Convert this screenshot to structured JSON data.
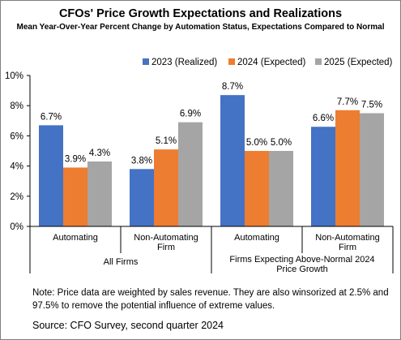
{
  "title": "CFOs' Price Growth Expectations and Realizations",
  "subtitle": "Mean Year-Over-Year Percent Change by Automation Status, Expectations Compared to Normal",
  "note": "Note: Price data are weighted by sales revenue. They are also winsorized at 2.5% and 97.5% to remove the potential influence of extreme values.",
  "source": "Source: CFO Survey, second quarter 2024",
  "chart_data": {
    "type": "bar",
    "title": "CFOs' Price Growth Expectations and Realizations",
    "subtitle": "Mean Year-Over-Year Percent Change by Automation Status, Expectations Compared to Normal",
    "categories": [
      "Automating",
      "Non-Automating Firm",
      "Automating",
      "Non-Automating Firm"
    ],
    "groups": [
      {
        "label": "All Firms",
        "categories": [
          0,
          1
        ]
      },
      {
        "label": "Firms Expecting Above-Normal 2024 Price Growth",
        "categories": [
          2,
          3
        ]
      }
    ],
    "series": [
      {
        "name": "2023 (Realized)",
        "color": "#4472c4",
        "values": [
          6.7,
          3.8,
          8.7,
          6.6
        ],
        "labels": [
          "6.7%",
          "3.8%",
          "8.7%",
          "6.6%"
        ]
      },
      {
        "name": "2024 (Expected)",
        "color": "#ed7d31",
        "values": [
          3.9,
          5.1,
          5.0,
          7.7
        ],
        "labels": [
          "3.9%",
          "5.1%",
          "5.0%",
          "7.7%"
        ]
      },
      {
        "name": "2025 (Expected)",
        "color": "#a5a5a5",
        "values": [
          4.3,
          6.9,
          5.0,
          7.5
        ],
        "labels": [
          "4.3%",
          "6.9%",
          "5.0%",
          "7.5%"
        ]
      }
    ],
    "ylim": [
      0,
      10
    ],
    "yticks": [
      0,
      2,
      4,
      6,
      8,
      10
    ],
    "ytick_labels": [
      "0%",
      "2%",
      "4%",
      "6%",
      "8%",
      "10%"
    ],
    "xlabel": "",
    "ylabel": "",
    "legend_position": "top-right",
    "grid": false
  }
}
